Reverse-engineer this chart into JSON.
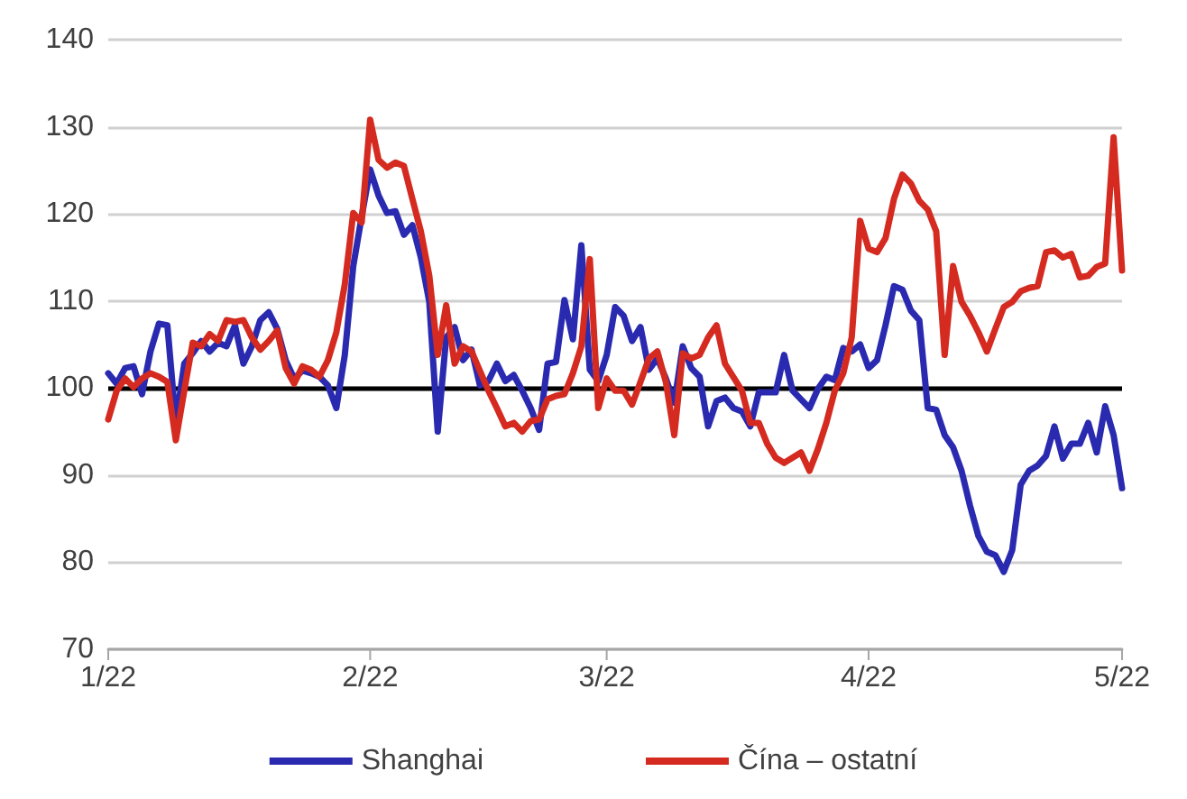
{
  "chart_data": {
    "type": "line",
    "xlim": [
      "2022-01-01",
      "2022-05-01"
    ],
    "xticks": [
      {
        "value": "2022-01-01",
        "label": "1/22"
      },
      {
        "value": "2022-02-01",
        "label": "2/22"
      },
      {
        "value": "2022-03-01",
        "label": "3/22"
      },
      {
        "value": "2022-04-01",
        "label": "4/22"
      },
      {
        "value": "2022-05-01",
        "label": "5/22"
      }
    ],
    "x": [
      "2022-01-01",
      "2022-01-02",
      "2022-01-03",
      "2022-01-04",
      "2022-01-05",
      "2022-01-06",
      "2022-01-07",
      "2022-01-08",
      "2022-01-09",
      "2022-01-10",
      "2022-01-11",
      "2022-01-12",
      "2022-01-13",
      "2022-01-14",
      "2022-01-15",
      "2022-01-16",
      "2022-01-17",
      "2022-01-18",
      "2022-01-19",
      "2022-01-20",
      "2022-01-21",
      "2022-01-22",
      "2022-01-23",
      "2022-01-24",
      "2022-01-25",
      "2022-01-26",
      "2022-01-27",
      "2022-01-28",
      "2022-01-29",
      "2022-01-30",
      "2022-01-31",
      "2022-02-01",
      "2022-02-02",
      "2022-02-03",
      "2022-02-04",
      "2022-02-05",
      "2022-02-06",
      "2022-02-07",
      "2022-02-08",
      "2022-02-09",
      "2022-02-10",
      "2022-02-11",
      "2022-02-12",
      "2022-02-13",
      "2022-02-14",
      "2022-02-15",
      "2022-02-16",
      "2022-02-17",
      "2022-02-18",
      "2022-02-19",
      "2022-02-20",
      "2022-02-21",
      "2022-02-22",
      "2022-02-23",
      "2022-02-24",
      "2022-02-25",
      "2022-02-26",
      "2022-02-27",
      "2022-02-28",
      "2022-03-01",
      "2022-03-02",
      "2022-03-03",
      "2022-03-04",
      "2022-03-05",
      "2022-03-06",
      "2022-03-07",
      "2022-03-08",
      "2022-03-09",
      "2022-03-10",
      "2022-03-11",
      "2022-03-12",
      "2022-03-13",
      "2022-03-14",
      "2022-03-15",
      "2022-03-16",
      "2022-03-17",
      "2022-03-18",
      "2022-03-19",
      "2022-03-20",
      "2022-03-21",
      "2022-03-22",
      "2022-03-23",
      "2022-03-24",
      "2022-03-25",
      "2022-03-26",
      "2022-03-27",
      "2022-03-28",
      "2022-03-29",
      "2022-03-30",
      "2022-03-31",
      "2022-04-01",
      "2022-04-02",
      "2022-04-03",
      "2022-04-04",
      "2022-04-05",
      "2022-04-06",
      "2022-04-07",
      "2022-04-08",
      "2022-04-09",
      "2022-04-10",
      "2022-04-11",
      "2022-04-12",
      "2022-04-13",
      "2022-04-14",
      "2022-04-15",
      "2022-04-16",
      "2022-04-17",
      "2022-04-18",
      "2022-04-19",
      "2022-04-20",
      "2022-04-21",
      "2022-04-22",
      "2022-04-23",
      "2022-04-24",
      "2022-04-25",
      "2022-04-26",
      "2022-04-27",
      "2022-04-28",
      "2022-04-29",
      "2022-04-30",
      "2022-05-01"
    ],
    "ylim": [
      70,
      140
    ],
    "yticks": [
      70,
      80,
      90,
      100,
      110,
      120,
      130,
      140
    ],
    "grid": "y",
    "legend": "bottom",
    "marker": "none",
    "line_style": "solid",
    "ref_lines": [
      {
        "axis": "y",
        "value": 100,
        "color": "#000000"
      }
    ],
    "series": [
      {
        "name": "Shanghai",
        "color": "#2a2ab0",
        "values": [
          101.7,
          100.5,
          102.3,
          102.5,
          99.3,
          104.2,
          107.4,
          107.2,
          96.0,
          102.8,
          104,
          105.4,
          104.2,
          105.2,
          104.8,
          107.2,
          102.8,
          104.8,
          107.8,
          108.7,
          106.8,
          103.2,
          101.1,
          102,
          101.7,
          101.3,
          100.3,
          97.7,
          103.8,
          114,
          119.7,
          125.1,
          122.1,
          120.1,
          120.3,
          117.6,
          118.7,
          115,
          109.9,
          95.0,
          105.8,
          107,
          103.2,
          104.4,
          100.3,
          100.8,
          102.8,
          100.8,
          101.5,
          99.7,
          97.7,
          95.2,
          102.8,
          103,
          110.1,
          105.6,
          116.4,
          102.1,
          100.8,
          103.8,
          109.3,
          108.3,
          105.4,
          107,
          102.1,
          103.4,
          101.1,
          98.3,
          104.8,
          102.3,
          101.3,
          95.6,
          98.5,
          98.9,
          97.7,
          97.3,
          95.6,
          99.5,
          99.5,
          99.5,
          103.8,
          99.7,
          98.7,
          97.7,
          99.9,
          101.3,
          100.9,
          104.6,
          104.2,
          105,
          102.3,
          103.2,
          107.2,
          111.7,
          111.3,
          108.9,
          107.8,
          97.7,
          97.5,
          94.6,
          93.2,
          90.5,
          86.5,
          83.0,
          81.2,
          80.8,
          78.9,
          81.4,
          88.9,
          90.5,
          91.1,
          92.2,
          95.6,
          91.9,
          93.6,
          93.6,
          96,
          92.6,
          97.9,
          94.6,
          88.5
        ]
      },
      {
        "name": "Čína – ostatní",
        "color": "#d42a20",
        "x": [
          "2022-01-01",
          "2022-01-02",
          "2022-01-03",
          "2022-01-04",
          "2022-01-05",
          "2022-01-06",
          "2022-01-07",
          "2022-01-08",
          "2022-01-09",
          "2022-01-10",
          "2022-01-11",
          "2022-01-12",
          "2022-01-13",
          "2022-01-14",
          "2022-01-15",
          "2022-01-16",
          "2022-01-17",
          "2022-01-18",
          "2022-01-19",
          "2022-01-20",
          "2022-01-21",
          "2022-01-22",
          "2022-01-23",
          "2022-01-24",
          "2022-01-25",
          "2022-01-26",
          "2022-01-27",
          "2022-01-28",
          "2022-01-29",
          "2022-01-30",
          "2022-01-31",
          "2022-02-01",
          "2022-02-02",
          "2022-02-03",
          "2022-02-04",
          "2022-02-05",
          "2022-02-06",
          "2022-02-07",
          "2022-02-08",
          "2022-02-09",
          "2022-02-10",
          "2022-02-11",
          "2022-02-12",
          "2022-02-13",
          "2022-02-15",
          "2022-02-16",
          "2022-02-17",
          "2022-02-18",
          "2022-02-19",
          "2022-02-20",
          "2022-02-21",
          "2022-02-22",
          "2022-02-23",
          "2022-02-24",
          "2022-02-25",
          "2022-02-26",
          "2022-02-27",
          "2022-02-28",
          "2022-03-01",
          "2022-03-02",
          "2022-03-03",
          "2022-03-04",
          "2022-03-05",
          "2022-03-06",
          "2022-03-07",
          "2022-03-08",
          "2022-03-09",
          "2022-03-10",
          "2022-03-11",
          "2022-03-12",
          "2022-03-13",
          "2022-03-14",
          "2022-03-15",
          "2022-03-17",
          "2022-03-18",
          "2022-03-19",
          "2022-03-20",
          "2022-03-21",
          "2022-03-22",
          "2022-03-23",
          "2022-03-24",
          "2022-03-25",
          "2022-03-26",
          "2022-03-27",
          "2022-03-28",
          "2022-03-29",
          "2022-03-30",
          "2022-03-31",
          "2022-04-01",
          "2022-04-02",
          "2022-04-03",
          "2022-04-04",
          "2022-04-05",
          "2022-04-06",
          "2022-04-07",
          "2022-04-08",
          "2022-04-09",
          "2022-04-10",
          "2022-04-11",
          "2022-04-12",
          "2022-04-13",
          "2022-04-14",
          "2022-04-15",
          "2022-04-16",
          "2022-04-17",
          "2022-04-18",
          "2022-04-19",
          "2022-04-20",
          "2022-04-21",
          "2022-04-22",
          "2022-04-23",
          "2022-04-24",
          "2022-04-25",
          "2022-04-26",
          "2022-04-27",
          "2022-04-28",
          "2022-04-29",
          "2022-04-30",
          "2022-05-01"
        ],
        "values": [
          96.4,
          99.7,
          101.1,
          100.1,
          101.1,
          101.7,
          101.3,
          100.7,
          94.0,
          99.7,
          105.2,
          104.8,
          106.2,
          105.4,
          107.8,
          107.6,
          107.8,
          105.8,
          104.4,
          105.4,
          106.6,
          102.3,
          100.5,
          102.5,
          102.1,
          101.3,
          103.2,
          106.4,
          111.9,
          120.1,
          119.0,
          130.8,
          126.2,
          125.3,
          125.9,
          125.5,
          121.7,
          118,
          112.9,
          103.8,
          109.5,
          102.8,
          104.8,
          104.2,
          99.7,
          97.7,
          95.6,
          96,
          95,
          96.2,
          96.4,
          98.7,
          99.1,
          99.3,
          101.7,
          104.8,
          114.8,
          97.7,
          101.1,
          99.7,
          99.7,
          98.1,
          100.7,
          103.4,
          104.2,
          100.7,
          94.6,
          104,
          103.4,
          103.8,
          105.8,
          107.2,
          102.8,
          99.7,
          96,
          96,
          93.6,
          92,
          91.4,
          92,
          92.6,
          90.5,
          93,
          96,
          99.7,
          101.7,
          105.8,
          119.2,
          116,
          115.6,
          117.2,
          121.7,
          124.5,
          123.5,
          121.5,
          120.5,
          118,
          103.8,
          114,
          109.9,
          108.3,
          106.4,
          104.2,
          106.8,
          109.3,
          109.9,
          111.1,
          111.5,
          111.7,
          115.6,
          115.8,
          115,
          115.4,
          112.7,
          112.9,
          113.9,
          114.3,
          128.8,
          113.5
        ]
      }
    ]
  }
}
